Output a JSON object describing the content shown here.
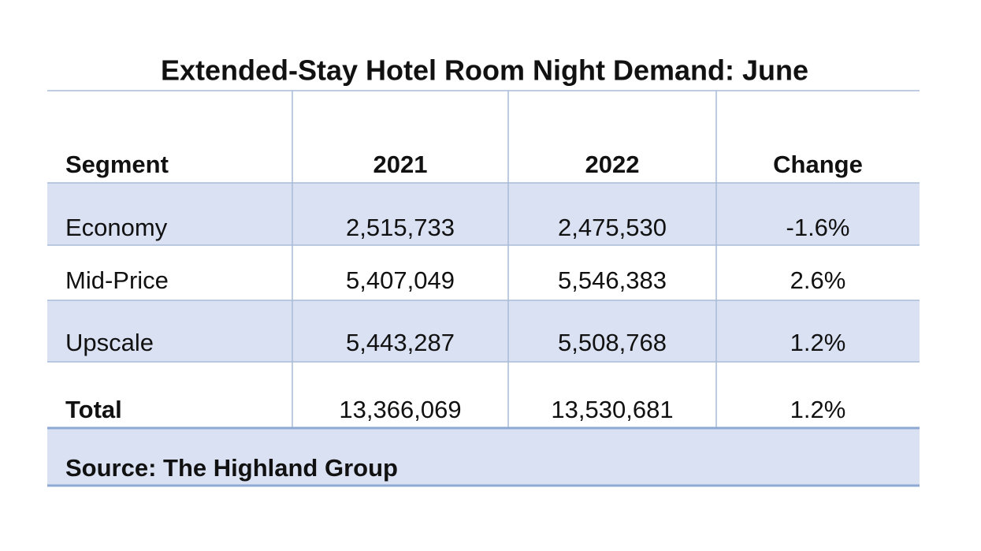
{
  "header": {
    "title": "Extended-Stay Hotel Room Night Demand: June"
  },
  "table": {
    "columns": [
      "Segment",
      "2021",
      "2022",
      "Change"
    ],
    "rows": [
      [
        "Economy",
        "2,515,733",
        "2,475,530",
        "-1.6%"
      ],
      [
        "Mid-Price",
        "5,407,049",
        "5,546,383",
        "2.6%"
      ],
      [
        "Upscale",
        "5,443,287",
        "5,508,768",
        "1.2%"
      ],
      [
        "Total",
        "13,366,069",
        "13,530,681",
        "1.2%"
      ]
    ]
  },
  "footer": {
    "source": "Source: The Highland Group"
  }
}
